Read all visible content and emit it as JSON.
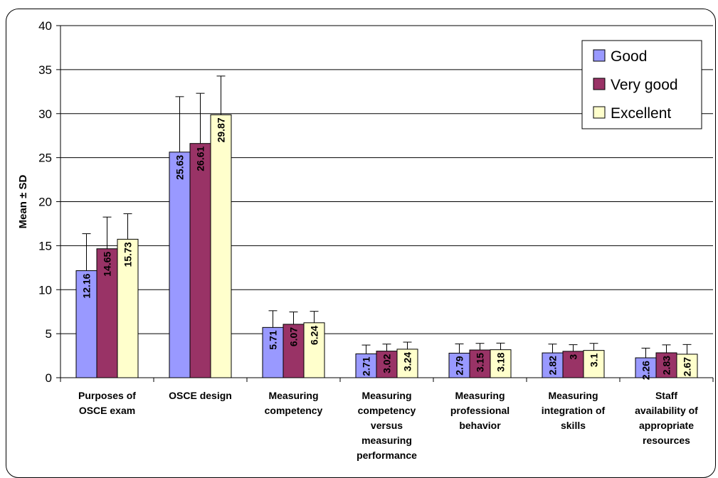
{
  "chart_data": {
    "type": "bar",
    "title": "",
    "xlabel": "",
    "ylabel": "Mean ± SD",
    "ylim": [
      0,
      40
    ],
    "yticks": [
      0,
      5,
      10,
      15,
      20,
      25,
      30,
      35,
      40
    ],
    "grid": true,
    "legend_position": "top-right",
    "categories": [
      [
        "Purposes of",
        "OSCE exam"
      ],
      [
        "OSCE design"
      ],
      [
        "Measuring",
        "competency"
      ],
      [
        "Measuring",
        "competency",
        "versus",
        "measuring",
        "performance"
      ],
      [
        "Measuring",
        "professional",
        "behavior"
      ],
      [
        "Measuring",
        "integration of",
        "skills"
      ],
      [
        "Staff",
        "availability of",
        "appropriate",
        "resources"
      ]
    ],
    "series": [
      {
        "name": "Good",
        "color": "#9999ff",
        "values": [
          12.16,
          25.63,
          5.71,
          2.71,
          2.79,
          2.82,
          2.26
        ],
        "labels": [
          "12.16",
          "25.63",
          "5.71",
          "2.71",
          "2.79",
          "2.82",
          "2.26"
        ],
        "sd": [
          4.2,
          6.3,
          1.9,
          1.0,
          1.05,
          1.0,
          1.1
        ]
      },
      {
        "name": "Very good",
        "color": "#993366",
        "values": [
          14.65,
          26.61,
          6.07,
          3.02,
          3.15,
          3,
          2.83
        ],
        "labels": [
          "14.65",
          "26.61",
          "6.07",
          "3.02",
          "3.15",
          "3",
          "2.83"
        ],
        "sd": [
          3.6,
          5.7,
          1.4,
          0.8,
          0.75,
          0.75,
          0.9
        ]
      },
      {
        "name": "Excellent",
        "color": "#ffffcc",
        "values": [
          15.73,
          29.87,
          6.24,
          3.24,
          3.18,
          3.1,
          2.67
        ],
        "labels": [
          "15.73",
          "29.87",
          "6.24",
          "3.24",
          "3.18",
          "3.1",
          "2.67"
        ],
        "sd": [
          2.9,
          4.4,
          1.3,
          0.8,
          0.75,
          0.8,
          1.1
        ]
      }
    ]
  }
}
